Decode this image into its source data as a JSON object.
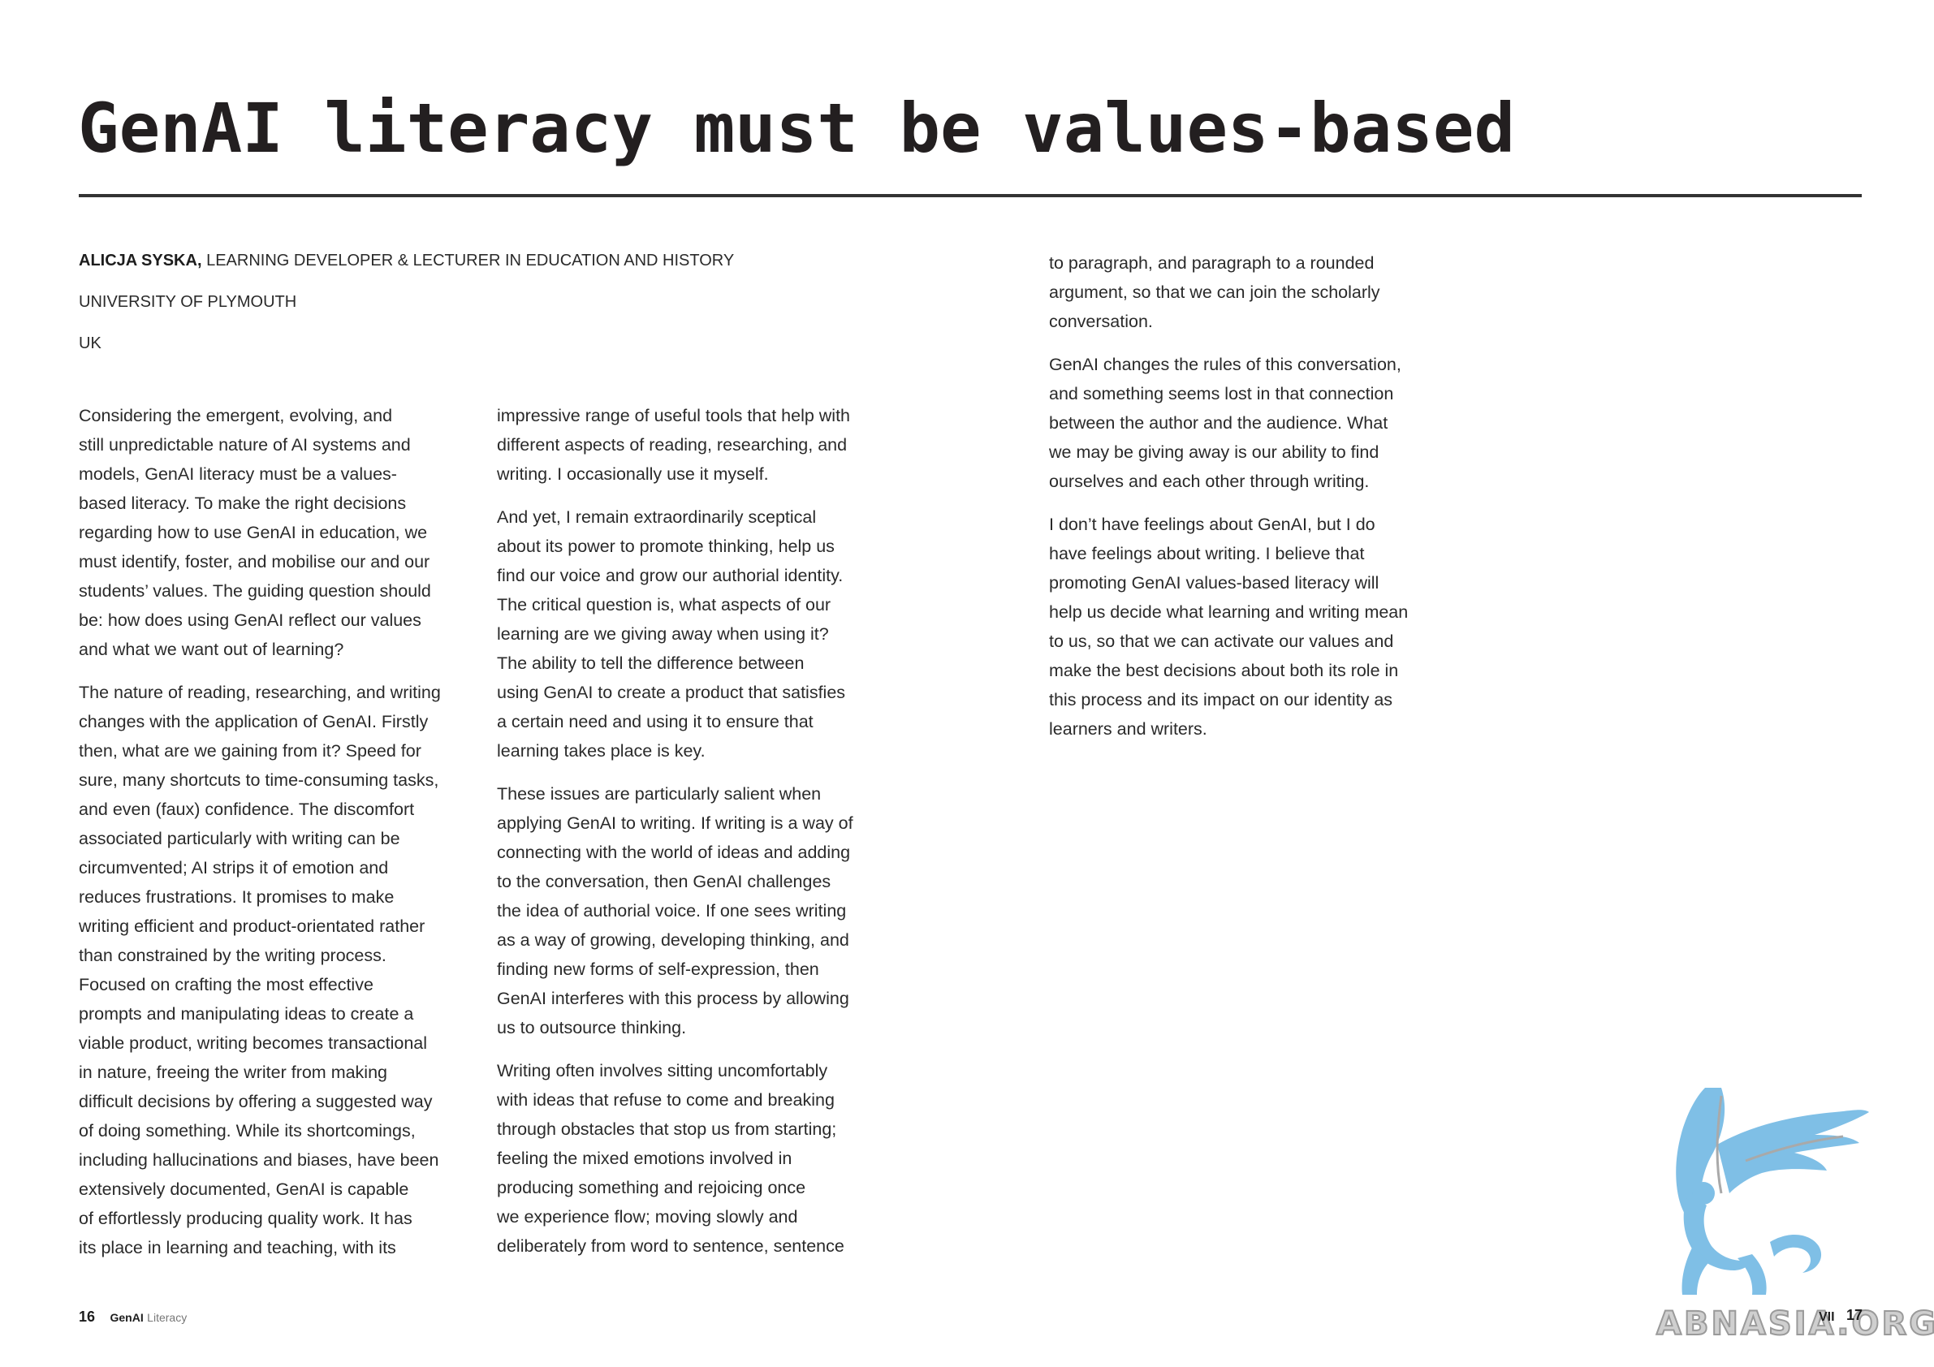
{
  "title": "GenAI literacy must be values-based",
  "author": {
    "name": "ALICJA SYSKA,",
    "role": "LEARNING DEVELOPER & LECTURER IN EDUCATION AND HISTORY",
    "institution": "UNIVERSITY OF PLYMOUTH",
    "country": "UK"
  },
  "columns": [
    {
      "paragraphs": [
        "Considering the emergent, evolving, and\nstill unpredictable nature of AI systems and\nmodels, GenAI literacy must be a values-\nbased literacy. To make the right decisions\nregarding how to use GenAI in education, we\nmust identify, foster, and mobilise our and our\nstudents’ values. The guiding question should\nbe: how does using GenAI reflect our values\nand what we want out of learning?",
        "The nature of reading, researching, and writing\nchanges with the application of GenAI. Firstly\nthen, what are we gaining from it? Speed for\nsure, many shortcuts to time-consuming tasks,\nand even (faux) confidence. The discomfort\nassociated particularly with writing can be\ncircumvented; AI strips it of emotion and\nreduces frustrations. It promises to make\nwriting efficient and product-orientated rather\nthan constrained by the writing process.\nFocused on crafting the most effective\nprompts and manipulating ideas to create a\nviable product, writing becomes transactional\nin nature, freeing the writer from making\ndifficult decisions by offering a suggested way\nof doing something. While its shortcomings,\nincluding hallucinations and biases, have been\nextensively documented, GenAI is capable\nof effortlessly producing quality work. It has\nits place in learning and teaching, with its"
      ]
    },
    {
      "paragraphs": [
        "impressive range of useful tools that help with\ndifferent aspects of reading, researching, and\nwriting. I occasionally use it myself.",
        "And yet, I remain extraordinarily sceptical\nabout its power to promote thinking, help us\nfind our voice and grow our authorial identity.\nThe critical question is, what aspects of our\nlearning are we giving away when using it?\nThe ability to tell the difference between\nusing GenAI to create a product that satisfies\na certain need and using it to ensure that\nlearning takes place is key.",
        "These issues are particularly salient when\napplying GenAI to writing. If writing is a way of\nconnecting with the world of ideas and adding\nto the conversation, then GenAI challenges\nthe idea of authorial voice. If one sees writing\nas a way of growing, developing thinking, and\nfinding new forms of self-expression, then\nGenAI interferes with this process by allowing\nus to outsource thinking.",
        "Writing often involves sitting uncomfortably\nwith ideas that refuse to come and breaking\nthrough obstacles that stop us from starting;\nfeeling the mixed emotions involved in\nproducing something and rejoicing once\nwe experience flow; moving slowly and\ndeliberately from word to sentence, sentence"
      ]
    },
    {
      "paragraphs": [
        "to paragraph, and paragraph to a rounded\nargument, so that we can join the scholarly\nconversation.",
        "GenAI changes the rules of this conversation,\nand something seems lost in that connection\nbetween the author and the audience. What\nwe may be giving away is our ability to find\nourselves and each other through writing.",
        "I don’t have feelings about GenAI, but I do\nhave feelings about writing. I believe that\npromoting GenAI values-based literacy will\nhelp us decide what learning and writing mean\nto us, so that we can activate our values and\nmake the best decisions about both its role in\nthis process and its impact on our identity as\nlearners and writers."
      ]
    }
  ],
  "footer": {
    "left_page_number": "16",
    "brand_bold": "GenAI",
    "brand_rest": "Literacy",
    "right_marker": "VII",
    "right_page_number": "17"
  },
  "watermark": {
    "text": "ABNASIA.ORG",
    "icon": "griffin-logo",
    "color": "#7fbfe6"
  }
}
